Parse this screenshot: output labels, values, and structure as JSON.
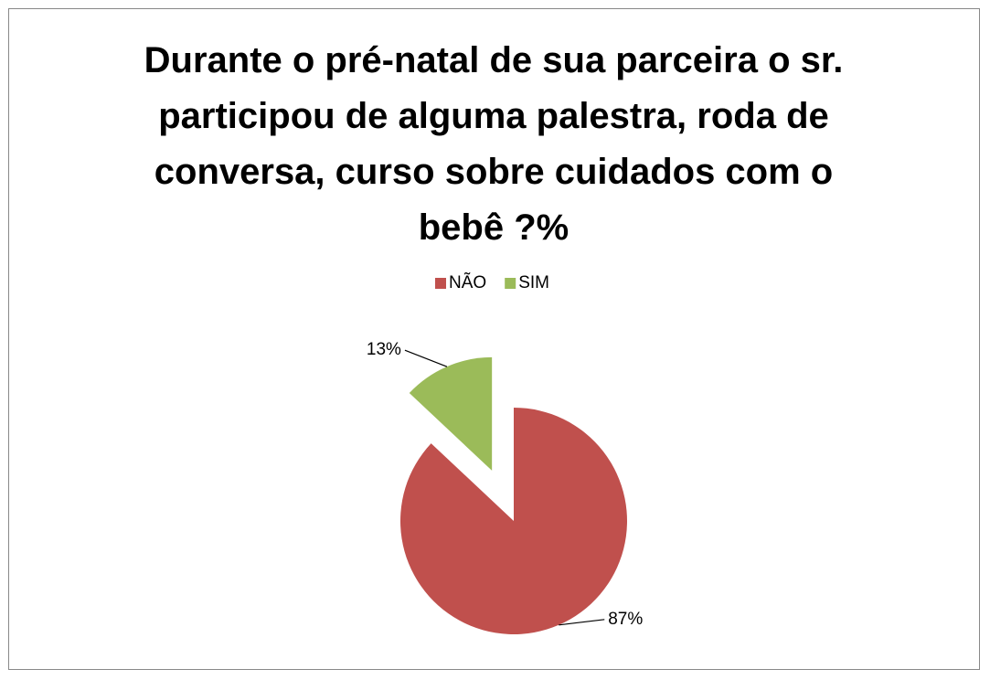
{
  "chart_data": {
    "type": "pie",
    "title": "Durante o pré-natal de sua parceira o sr. participou de alguma palestra, roda de conversa, curso sobre cuidados com o bebê ?%",
    "categories": [
      "NÃO",
      "SIM"
    ],
    "values": [
      87,
      13
    ],
    "value_labels": [
      "87%",
      "13%"
    ],
    "colors": [
      "#c0504d",
      "#9bbb59"
    ],
    "legend": "top"
  }
}
